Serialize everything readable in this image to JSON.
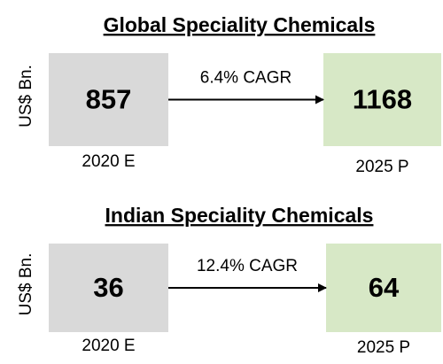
{
  "sections": [
    {
      "title": "Global Speciality Chemicals",
      "y_label": "US$ Bn.",
      "from": {
        "value": 857,
        "label": "2020 E"
      },
      "to": {
        "value": 1168,
        "label": "2025 P"
      },
      "cagr": "6.4% CAGR"
    },
    {
      "title": "Indian Speciality Chemicals",
      "y_label": "US$ Bn.",
      "from": {
        "value": 36,
        "label": "2020 E"
      },
      "to": {
        "value": 64,
        "label": "2025 P"
      },
      "cagr": "12.4% CAGR"
    }
  ]
}
